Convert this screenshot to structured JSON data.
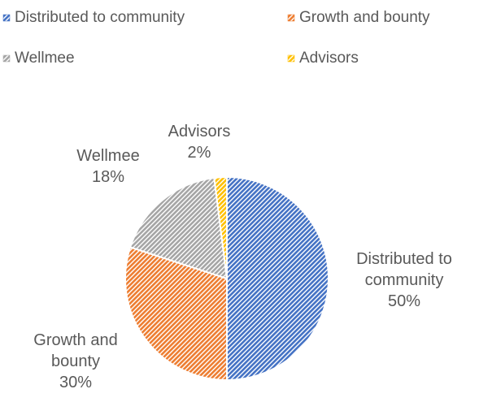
{
  "chart_data": {
    "type": "pie",
    "categories": [
      "Distributed to community",
      "Growth and bounty",
      "Wellmee",
      "Advisors"
    ],
    "values": [
      50,
      30,
      18,
      2
    ],
    "value_labels": [
      "50%",
      "30%",
      "18%",
      "2%"
    ],
    "colors": [
      "#4472c4",
      "#ed7d31",
      "#a5a5a5",
      "#ffc000"
    ],
    "legend": "top"
  }
}
